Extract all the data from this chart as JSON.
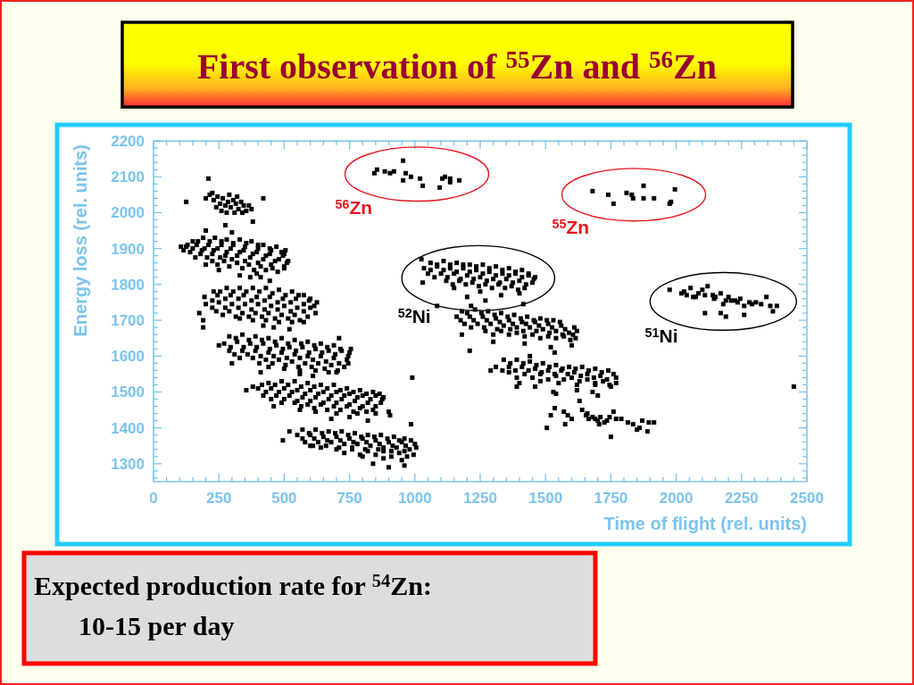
{
  "chart_data": {
    "type": "scatter",
    "title": "First observation of $^{55}$Zn and $^{56}$Zn",
    "xlabel": "Time of flight (rel. units)",
    "ylabel": "Energy loss (rel. units)",
    "xlim": [
      0,
      2500
    ],
    "ylim": [
      1250,
      2200
    ],
    "xticks": [
      0,
      {
        "value": 50,
        "label": null
      },
      {
        "value": 100,
        "label": null
      },
      {
        "value": 150,
        "label": null
      },
      {
        "value": 200,
        "label": null
      },
      250,
      {
        "value": 300,
        "label": null
      },
      {
        "value": 350,
        "label": null
      },
      {
        "value": 400,
        "label": null
      },
      {
        "value": 450,
        "label": null
      },
      500,
      {
        "value": 550,
        "label": null
      },
      {
        "value": 600,
        "label": null
      },
      {
        "value": 650,
        "label": null
      },
      {
        "value": 700,
        "label": null
      },
      750,
      {
        "value": 800,
        "label": null
      },
      {
        "value": 850,
        "label": null
      },
      {
        "value": 900,
        "label": null
      },
      {
        "value": 950,
        "label": null
      },
      1000,
      {
        "value": 1050,
        "label": null
      },
      {
        "value": 1100,
        "label": null
      },
      {
        "value": 1150,
        "label": null
      },
      {
        "value": 1200,
        "label": null
      },
      1250,
      {
        "value": 1300,
        "label": null
      },
      {
        "value": 1350,
        "label": null
      },
      {
        "value": 1400,
        "label": null
      },
      {
        "value": 1450,
        "label": null
      },
      1500,
      {
        "value": 1550,
        "label": null
      },
      {
        "value": 1600,
        "label": null
      },
      {
        "value": 1650,
        "label": null
      },
      {
        "value": 1700,
        "label": null
      },
      1750,
      {
        "value": 1800,
        "label": null
      },
      {
        "value": 1850,
        "label": null
      },
      {
        "value": 1900,
        "label": null
      },
      {
        "value": 1950,
        "label": null
      },
      2000,
      {
        "value": 2050,
        "label": null
      },
      {
        "value": 2100,
        "label": null
      },
      {
        "value": 2150,
        "label": null
      },
      {
        "value": 2200,
        "label": null
      },
      2250,
      {
        "value": 2300,
        "label": null
      },
      {
        "value": 2350,
        "label": null
      },
      {
        "value": 2400,
        "label": null
      },
      {
        "value": 2450,
        "label": null
      },
      2500
    ],
    "yticks": [
      {
        "value": 1260,
        "label": null
      },
      {
        "value": 1280,
        "label": null
      },
      1300,
      {
        "value": 1320,
        "label": null
      },
      {
        "value": 1340,
        "label": null
      },
      {
        "value": 1360,
        "label": null
      },
      {
        "value": 1380,
        "label": null
      },
      1400,
      {
        "value": 1420,
        "label": null
      },
      {
        "value": 1440,
        "label": null
      },
      {
        "value": 1460,
        "label": null
      },
      {
        "value": 1480,
        "label": null
      },
      1500,
      {
        "value": 1520,
        "label": null
      },
      {
        "value": 1540,
        "label": null
      },
      {
        "value": 1560,
        "label": null
      },
      {
        "value": 1580,
        "label": null
      },
      1600,
      {
        "value": 1620,
        "label": null
      },
      {
        "value": 1640,
        "label": null
      },
      {
        "value": 1660,
        "label": null
      },
      {
        "value": 1680,
        "label": null
      },
      1700,
      {
        "value": 1720,
        "label": null
      },
      {
        "value": 1740,
        "label": null
      },
      {
        "value": 1760,
        "label": null
      },
      {
        "value": 1780,
        "label": null
      },
      1800,
      {
        "value": 1820,
        "label": null
      },
      {
        "value": 1840,
        "label": null
      },
      {
        "value": 1860,
        "label": null
      },
      {
        "value": 1880,
        "label": null
      },
      1900,
      {
        "value": 1920,
        "label": null
      },
      {
        "value": 1940,
        "label": null
      },
      {
        "value": 1960,
        "label": null
      },
      {
        "value": 1980,
        "label": null
      },
      2000,
      {
        "value": 2020,
        "label": null
      },
      {
        "value": 2040,
        "label": null
      },
      {
        "value": 2060,
        "label": null
      },
      {
        "value": 2080,
        "label": null
      },
      2100,
      {
        "value": 2120,
        "label": null
      },
      {
        "value": 2140,
        "label": null
      },
      {
        "value": 2160,
        "label": null
      },
      {
        "value": 2180,
        "label": null
      },
      2200
    ],
    "marker": "square",
    "annotations": [
      "Expected production rate for $^{54}$Zn:",
      "10-15 per day"
    ],
    "series": [
      {
        "name": "$^{56}$Zn",
        "color": "#000000",
        "x": [
          845,
          855,
          885,
          905,
          920,
          955,
          965,
          985,
          955,
          1020,
          1030,
          1105,
          1115,
          1135,
          1135,
          1170,
          1095
        ],
        "values": [
          2110,
          2120,
          2115,
          2110,
          2115,
          2145,
          2110,
          2100,
          2090,
          2095,
          2075,
          2095,
          2100,
          2095,
          2085,
          2090,
          2070
        ]
      },
      {
        "name": "$^{55}$Zn",
        "color": "#000000",
        "x": [
          1680,
          1740,
          1760,
          1810,
          1830,
          1835,
          1875,
          1875,
          1915,
          1995,
          1980,
          1975
        ],
        "values": [
          2060,
          2050,
          2025,
          2055,
          2050,
          2040,
          2075,
          2040,
          2040,
          2065,
          2030,
          2025
        ]
      },
      {
        "name": "$^{52}$Ni",
        "color": "#000000",
        "x": [
          1060,
          1110,
          1160,
          1210,
          1260,
          1310,
          1360,
          1410,
          1035,
          1085,
          1135,
          1185,
          1235,
          1285,
          1335,
          1385,
          1435,
          1460,
          1050,
          1100,
          1150,
          1200,
          1250,
          1300,
          1350,
          1400,
          1450,
          1120,
          1170,
          1220,
          1270,
          1320,
          1370,
          1420,
          1030,
          1150,
          1250,
          1330,
          1400,
          1200,
          1025,
          1085,
          1135,
          1185,
          1235,
          1285,
          1335,
          1385,
          1435,
          1060,
          1110,
          1160,
          1210,
          1260,
          1310,
          1360,
          1410,
          1455,
          1075,
          1125,
          1175,
          1225,
          1275,
          1325,
          1375,
          1425,
          1145,
          1195,
          1245,
          1295,
          1345,
          1395
        ],
        "values": [
          1860,
          1865,
          1860,
          1855,
          1855,
          1850,
          1845,
          1840,
          1845,
          1850,
          1845,
          1845,
          1840,
          1835,
          1830,
          1830,
          1825,
          1820,
          1830,
          1830,
          1830,
          1825,
          1820,
          1815,
          1815,
          1810,
          1805,
          1810,
          1810,
          1805,
          1800,
          1800,
          1795,
          1790,
          1805,
          1790,
          1780,
          1770,
          1775,
          1765,
          1870,
          1855,
          1855,
          1855,
          1850,
          1845,
          1840,
          1835,
          1830,
          1840,
          1840,
          1835,
          1835,
          1830,
          1825,
          1825,
          1820,
          1815,
          1820,
          1820,
          1815,
          1815,
          1810,
          1805,
          1805,
          1800,
          1800,
          1800,
          1795,
          1790,
          1790,
          1785
        ]
      },
      {
        "name": "$^{51}$Ni",
        "color": "#000000",
        "x": [
          1975,
          2020,
          2040,
          2055,
          2075,
          2100,
          2110,
          2120,
          2145,
          2170,
          2180,
          2200,
          2225,
          2245,
          2260,
          2280,
          2305,
          2325,
          2345,
          2360,
          2385,
          2370,
          2110,
          2170,
          2190,
          2260,
          2065,
          2140,
          2190,
          2030,
          2085,
          2150,
          2210,
          2235,
          2290
        ],
        "values": [
          1785,
          1775,
          1770,
          1790,
          1765,
          1785,
          1770,
          1795,
          1760,
          1775,
          1745,
          1765,
          1755,
          1760,
          1740,
          1750,
          1750,
          1745,
          1765,
          1740,
          1740,
          1725,
          1720,
          1720,
          1710,
          1715,
          1765,
          1770,
          1755,
          1780,
          1775,
          1765,
          1755,
          1750,
          1745
        ]
      },
      {
        "color": "#000000",
        "x": [
          200,
          215,
          230,
          245,
          255,
          265,
          275,
          285,
          295,
          305,
          315,
          325,
          335,
          345,
          355,
          365,
          375,
          240,
          260,
          280,
          310,
          340,
          225,
          290,
          320,
          125,
          210,
          420,
          380,
          275
        ],
        "values": [
          2040,
          2050,
          2035,
          2045,
          2025,
          2040,
          2020,
          2030,
          2015,
          2035,
          2025,
          2010,
          2030,
          2020,
          2005,
          2020,
          2010,
          2015,
          2005,
          2000,
          2000,
          2000,
          2055,
          2050,
          2045,
          2030,
          2095,
          2040,
          1975,
          1965
        ]
      },
      {
        "color": "#000000",
        "x": [
          150,
          190,
          235,
          280,
          330,
          375,
          420,
          470,
          505,
          125,
          165,
          210,
          260,
          305,
          350,
          400,
          450,
          500,
          140,
          185,
          230,
          280,
          330,
          380,
          430,
          480,
          515,
          160,
          205,
          255,
          300,
          350,
          400,
          450,
          500,
          200,
          245,
          290,
          340,
          385,
          430,
          475,
          330,
          370,
          410,
          445,
          395,
          105,
          115,
          130,
          200,
          300,
          250,
          170,
          215,
          260,
          305,
          355,
          400,
          445,
          490,
          150,
          195,
          245,
          295,
          345,
          395,
          445,
          495,
          180,
          225,
          275,
          320,
          370,
          420,
          465,
          510,
          225,
          270,
          320,
          365,
          410,
          455,
          500
        ],
        "values": [
          1920,
          1930,
          1930,
          1925,
          1925,
          1920,
          1910,
          1905,
          1895,
          1905,
          1910,
          1910,
          1910,
          1910,
          1905,
          1900,
          1895,
          1885,
          1890,
          1895,
          1895,
          1890,
          1890,
          1885,
          1880,
          1870,
          1865,
          1875,
          1875,
          1875,
          1870,
          1865,
          1860,
          1855,
          1850,
          1855,
          1855,
          1850,
          1845,
          1840,
          1840,
          1835,
          1825,
          1820,
          1820,
          1810,
          1830,
          1905,
          1895,
          1910,
          1950,
          1945,
          1840,
          1920,
          1920,
          1920,
          1915,
          1915,
          1910,
          1900,
          1890,
          1900,
          1900,
          1900,
          1900,
          1895,
          1890,
          1885,
          1880,
          1885,
          1885,
          1880,
          1880,
          1875,
          1870,
          1865,
          1860,
          1865,
          1865,
          1860,
          1855,
          1850,
          1845,
          1845
        ]
      },
      {
        "color": "#000000",
        "x": [
          230,
          280,
          330,
          380,
          430,
          480,
          530,
          575,
          195,
          245,
          295,
          345,
          395,
          445,
          495,
          545,
          595,
          625,
          200,
          250,
          300,
          350,
          400,
          450,
          500,
          550,
          600,
          240,
          290,
          340,
          390,
          440,
          490,
          540,
          590,
          330,
          380,
          430,
          480,
          530,
          575,
          175,
          190,
          460,
          520,
          420,
          190,
          255,
          305,
          355,
          405,
          455,
          505,
          555,
          600,
          225,
          275,
          325,
          375,
          425,
          475,
          525,
          575,
          615,
          225,
          275,
          325,
          375,
          425,
          475,
          525,
          575,
          620,
          265,
          315,
          365,
          415,
          465,
          515,
          560
        ],
        "values": [
          1780,
          1790,
          1790,
          1790,
          1790,
          1785,
          1780,
          1770,
          1765,
          1770,
          1770,
          1770,
          1765,
          1765,
          1760,
          1760,
          1755,
          1750,
          1745,
          1750,
          1745,
          1745,
          1745,
          1740,
          1740,
          1735,
          1735,
          1725,
          1725,
          1720,
          1720,
          1720,
          1715,
          1715,
          1710,
          1705,
          1700,
          1700,
          1695,
          1695,
          1695,
          1720,
          1700,
          1680,
          1675,
          1685,
          1680,
          1780,
          1780,
          1780,
          1780,
          1775,
          1770,
          1770,
          1760,
          1755,
          1760,
          1760,
          1755,
          1755,
          1750,
          1750,
          1745,
          1740,
          1735,
          1735,
          1735,
          1730,
          1730,
          1730,
          1725,
          1725,
          1720,
          1715,
          1710,
          1710,
          1710,
          1705,
          1705,
          1700
        ]
      },
      {
        "color": "#000000",
        "x": [
          290,
          340,
          390,
          440,
          490,
          540,
          590,
          640,
          690,
          270,
          320,
          370,
          420,
          470,
          520,
          570,
          620,
          670,
          720,
          750,
          290,
          340,
          390,
          440,
          490,
          540,
          590,
          640,
          690,
          740,
          330,
          380,
          430,
          480,
          530,
          580,
          630,
          680,
          730,
          440,
          500,
          560,
          620,
          670,
          250,
          300,
          410,
          610,
          700,
          560,
          710,
          755,
          315,
          365,
          415,
          465,
          515,
          565,
          615,
          665,
          715,
          295,
          345,
          395,
          445,
          495,
          545,
          595,
          645,
          695,
          745,
          310,
          360,
          410,
          460,
          510,
          560,
          610,
          660,
          710,
          745,
          405,
          455,
          505,
          555,
          605,
          655,
          705
        ],
        "values": [
          1655,
          1660,
          1655,
          1650,
          1650,
          1645,
          1640,
          1635,
          1630,
          1635,
          1640,
          1635,
          1635,
          1630,
          1625,
          1625,
          1620,
          1615,
          1615,
          1610,
          1615,
          1615,
          1615,
          1610,
          1610,
          1605,
          1600,
          1600,
          1595,
          1590,
          1595,
          1595,
          1590,
          1590,
          1585,
          1580,
          1580,
          1575,
          1570,
          1570,
          1565,
          1560,
          1560,
          1555,
          1630,
          1580,
          1555,
          1545,
          1555,
          1550,
          1650,
          1620,
          1650,
          1645,
          1645,
          1640,
          1635,
          1635,
          1630,
          1625,
          1620,
          1625,
          1625,
          1625,
          1620,
          1620,
          1615,
          1610,
          1610,
          1605,
          1600,
          1605,
          1605,
          1600,
          1600,
          1595,
          1595,
          1590,
          1585,
          1580,
          1580,
          1580,
          1580,
          1575,
          1570,
          1570,
          1565,
          1560
        ]
      },
      {
        "color": "#000000",
        "x": [
          440,
          490,
          540,
          590,
          640,
          690,
          740,
          790,
          840,
          400,
          450,
          500,
          550,
          600,
          650,
          700,
          750,
          800,
          850,
          880,
          420,
          470,
          520,
          570,
          620,
          670,
          720,
          770,
          820,
          870,
          490,
          540,
          590,
          640,
          690,
          740,
          790,
          840,
          620,
          700,
          780,
          850,
          380,
          460,
          560,
          680,
          750,
          820,
          900,
          355,
          905,
          415,
          465,
          515,
          565,
          615,
          665,
          715,
          765,
          815,
          865,
          430,
          480,
          530,
          580,
          630,
          680,
          730,
          780,
          830,
          875,
          450,
          500,
          550,
          600,
          650,
          700,
          750,
          800,
          850,
          565,
          615,
          665,
          715,
          765,
          815
        ],
        "values": [
          1525,
          1530,
          1530,
          1525,
          1520,
          1520,
          1510,
          1505,
          1500,
          1510,
          1510,
          1510,
          1505,
          1505,
          1500,
          1500,
          1495,
          1490,
          1490,
          1485,
          1490,
          1490,
          1490,
          1485,
          1485,
          1480,
          1480,
          1475,
          1470,
          1470,
          1470,
          1470,
          1465,
          1465,
          1460,
          1460,
          1455,
          1450,
          1445,
          1440,
          1440,
          1440,
          1515,
          1460,
          1450,
          1425,
          1430,
          1420,
          1445,
          1505,
          1435,
          1520,
          1520,
          1520,
          1515,
          1515,
          1510,
          1505,
          1500,
          1495,
          1495,
          1500,
          1500,
          1500,
          1495,
          1495,
          1490,
          1490,
          1485,
          1480,
          1480,
          1480,
          1480,
          1475,
          1475,
          1470,
          1470,
          1465,
          1460,
          1460,
          1460,
          1455,
          1450,
          1450,
          1445,
          1445
        ]
      },
      {
        "color": "#000000",
        "x": [
          570,
          620,
          670,
          720,
          770,
          820,
          870,
          920,
          960,
          550,
          600,
          650,
          700,
          750,
          800,
          850,
          900,
          950,
          1000,
          580,
          630,
          680,
          730,
          780,
          830,
          880,
          930,
          980,
          640,
          700,
          760,
          820,
          880,
          940,
          995,
          800,
          880,
          950,
          520,
          600,
          840,
          900,
          960,
          495,
          595,
          645,
          695,
          745,
          795,
          845,
          895,
          940,
          985,
          570,
          615,
          665,
          715,
          765,
          815,
          865,
          915,
          965,
          1005,
          610,
          660,
          710,
          760,
          810,
          860,
          910,
          960,
          730,
          790,
          850,
          910,
          970
        ],
        "values": [
          1395,
          1395,
          1390,
          1390,
          1385,
          1380,
          1380,
          1375,
          1370,
          1380,
          1380,
          1375,
          1375,
          1370,
          1370,
          1365,
          1360,
          1360,
          1355,
          1360,
          1360,
          1360,
          1355,
          1355,
          1350,
          1345,
          1345,
          1340,
          1345,
          1340,
          1340,
          1335,
          1335,
          1330,
          1325,
          1320,
          1315,
          1310,
          1390,
          1350,
          1300,
          1290,
          1295,
          1365,
          1385,
          1385,
          1385,
          1380,
          1375,
          1375,
          1370,
          1365,
          1365,
          1370,
          1370,
          1365,
          1365,
          1360,
          1360,
          1355,
          1350,
          1350,
          1345,
          1350,
          1350,
          1345,
          1345,
          1340,
          1340,
          1335,
          1335,
          1330,
          1325,
          1325,
          1320,
          1320
        ]
      },
      {
        "color": "#000000",
        "x": [
          1180,
          1230,
          1280,
          1330,
          1380,
          1430,
          1480,
          1530,
          1160,
          1210,
          1260,
          1310,
          1360,
          1410,
          1460,
          1510,
          1560,
          1610,
          1190,
          1240,
          1290,
          1340,
          1390,
          1440,
          1490,
          1540,
          1590,
          1270,
          1330,
          1390,
          1450,
          1510,
          1570,
          1615,
          1180,
          1210,
          1300,
          1420,
          1520,
          1600,
          1215,
          1270,
          1085,
          1415,
          1200,
          1255,
          1305,
          1355,
          1405,
          1455,
          1505,
          1555,
          1175,
          1225,
          1275,
          1325,
          1375,
          1425,
          1475,
          1525,
          1575,
          1620,
          1215,
          1265,
          1315,
          1365,
          1415,
          1465,
          1515,
          1565,
          1605,
          1300,
          1360,
          1420,
          1480,
          1540,
          1595
        ],
        "values": [
          1725,
          1730,
          1725,
          1720,
          1715,
          1710,
          1705,
          1700,
          1710,
          1710,
          1710,
          1705,
          1700,
          1695,
          1695,
          1690,
          1685,
          1680,
          1690,
          1690,
          1690,
          1685,
          1680,
          1680,
          1675,
          1670,
          1665,
          1670,
          1670,
          1665,
          1660,
          1655,
          1655,
          1650,
          1660,
          1615,
          1640,
          1635,
          1625,
          1630,
          1740,
          1755,
          1740,
          1745,
          1720,
          1720,
          1715,
          1710,
          1705,
          1700,
          1700,
          1695,
          1700,
          1700,
          1700,
          1695,
          1690,
          1690,
          1685,
          1680,
          1675,
          1670,
          1680,
          1680,
          1675,
          1675,
          1670,
          1670,
          1665,
          1660,
          1660,
          1660,
          1660,
          1655,
          1650,
          1650,
          1645
        ]
      },
      {
        "color": "#000000",
        "x": [
          1340,
          1390,
          1440,
          1490,
          1540,
          1590,
          1640,
          1690,
          1740,
          1310,
          1360,
          1410,
          1460,
          1510,
          1560,
          1610,
          1660,
          1710,
          1770,
          1360,
          1420,
          1480,
          1540,
          1600,
          1660,
          1720,
          1770,
          1480,
          1550,
          1620,
          1690,
          1750,
          1400,
          1460,
          1530,
          1620,
          1680,
          1290,
          1390,
          1440,
          1535,
          1630,
          1540,
          1700,
          1365,
          1415,
          1465,
          1515,
          1565,
          1615,
          1665,
          1715,
          1760,
          1335,
          1385,
          1435,
          1485,
          1535,
          1585,
          1635,
          1685,
          1735,
          1390,
          1450,
          1510,
          1570,
          1630,
          1690,
          1745
        ],
        "values": [
          1590,
          1590,
          1585,
          1580,
          1575,
          1570,
          1570,
          1565,
          1560,
          1570,
          1570,
          1570,
          1565,
          1560,
          1560,
          1555,
          1550,
          1545,
          1540,
          1555,
          1550,
          1550,
          1545,
          1540,
          1535,
          1530,
          1525,
          1530,
          1525,
          1520,
          1520,
          1515,
          1525,
          1515,
          1500,
          1505,
          1500,
          1560,
          1515,
          1600,
          1610,
          1475,
          1495,
          1490,
          1580,
          1580,
          1575,
          1570,
          1565,
          1565,
          1560,
          1555,
          1550,
          1560,
          1560,
          1560,
          1555,
          1550,
          1550,
          1545,
          1540,
          1535,
          1540,
          1540,
          1535,
          1535,
          1530,
          1525,
          1520
        ]
      },
      {
        "color": "#000000",
        "x": [
          1520,
          1535,
          1570,
          1585,
          1600,
          1575,
          1505,
          1640,
          1655,
          1665,
          1690,
          1710,
          1735,
          1760,
          1770,
          1705,
          1790,
          1815,
          1835,
          1860,
          1890,
          1895,
          1915,
          1870,
          1750,
          1725,
          1850,
          1680,
          1700,
          1745,
          1660
        ],
        "values": [
          1435,
          1455,
          1445,
          1435,
          1425,
          1410,
          1400,
          1450,
          1435,
          1425,
          1425,
          1430,
          1420,
          1445,
          1425,
          1410,
          1425,
          1415,
          1410,
          1400,
          1390,
          1415,
          1415,
          1420,
          1375,
          1415,
          1395,
          1430,
          1420,
          1430,
          1440
        ]
      },
      {
        "color": "#000000",
        "x": [
          2450,
          990,
          985
        ],
        "values": [
          1515,
          1540,
          1410
        ]
      }
    ]
  }
}
